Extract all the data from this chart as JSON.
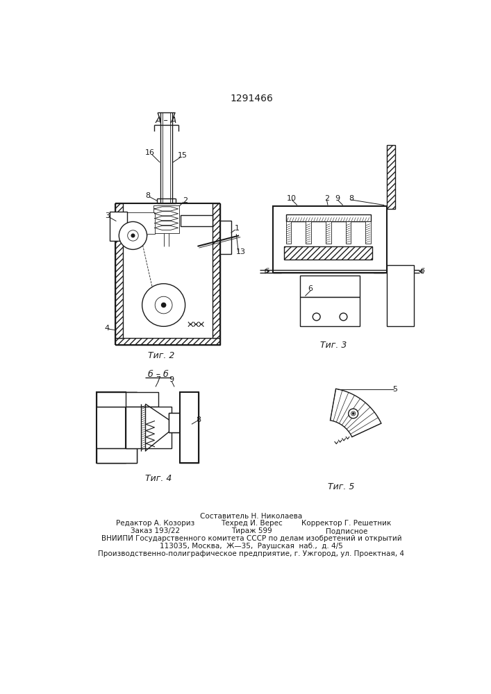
{
  "patent_number": "1291466",
  "background_color": "#ffffff",
  "line_color": "#1a1a1a",
  "fig2_caption": "Τиг. 2",
  "fig3_caption": "Τиг. 3",
  "fig4_caption": "Τиг. 4",
  "fig5_caption": "Τиг. 5",
  "aa_label": "A – A",
  "bb_label": "б – б",
  "footer_line1": "Составитель Н. Николаева",
  "footer_line2a": "Редактор А. Козориз",
  "footer_line2b": "Техред И. Верес",
  "footer_line2c": "Корректор Г. Решетник",
  "footer_line3a": "Заказ 193/22",
  "footer_line3b": "Тираж 599",
  "footer_line3c": "Подписное",
  "footer_line4": "ВНИИПИ Государственного комитета СССР по делам изобретений и открытий",
  "footer_line5": "113035, Москва,  Ж—35,  Раушская  наб.,  д. 4/5",
  "footer_line6": "Производственно-полиграфическое предприятие, г. Ужгород, ул. Проектная, 4"
}
